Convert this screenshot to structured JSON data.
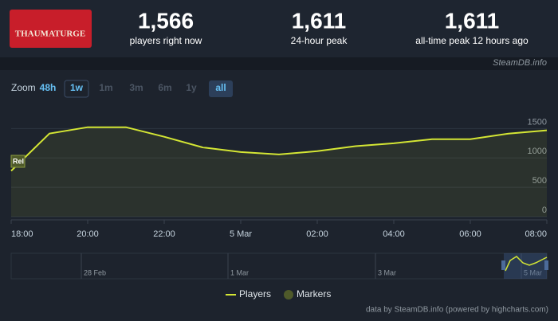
{
  "header": {
    "logo": "THAUMATURGE",
    "stats": [
      {
        "value": "1,566",
        "label": "players right now"
      },
      {
        "value": "1,611",
        "label": "24-hour peak"
      },
      {
        "value": "1,611",
        "label": "all-time peak 12 hours ago"
      }
    ],
    "source": "SteamDB.info"
  },
  "zoom": {
    "label": "Zoom",
    "buttons": [
      "48h",
      "1w",
      "1m",
      "3m",
      "6m",
      "1y",
      "all"
    ]
  },
  "chart_data": {
    "type": "line",
    "categories": [
      "18:00",
      null,
      "20:00",
      null,
      "22:00",
      null,
      "5 Mar",
      null,
      "02:00",
      null,
      "04:00",
      null,
      "06:00",
      null,
      "08:00"
    ],
    "series": [
      {
        "name": "Players",
        "color": "#d4e634",
        "values": [
          780,
          1415,
          1524,
          1524,
          1360,
          1180,
          1100,
          1060,
          1115,
          1200,
          1250,
          1320,
          1320,
          1415,
          1470
        ]
      }
    ],
    "ylim": [
      0,
      1750
    ],
    "yticks": [
      0,
      500,
      1000,
      1500
    ],
    "grid": true,
    "marker_label": "Rel",
    "marker_name": "Markers",
    "marker_color": "#4f5a2a",
    "navigator": [
      "28 Feb",
      "1 Mar",
      "3 Mar",
      "5 Mar"
    ],
    "credit": "data by SteamDB.info (powered by highcharts.com)"
  }
}
